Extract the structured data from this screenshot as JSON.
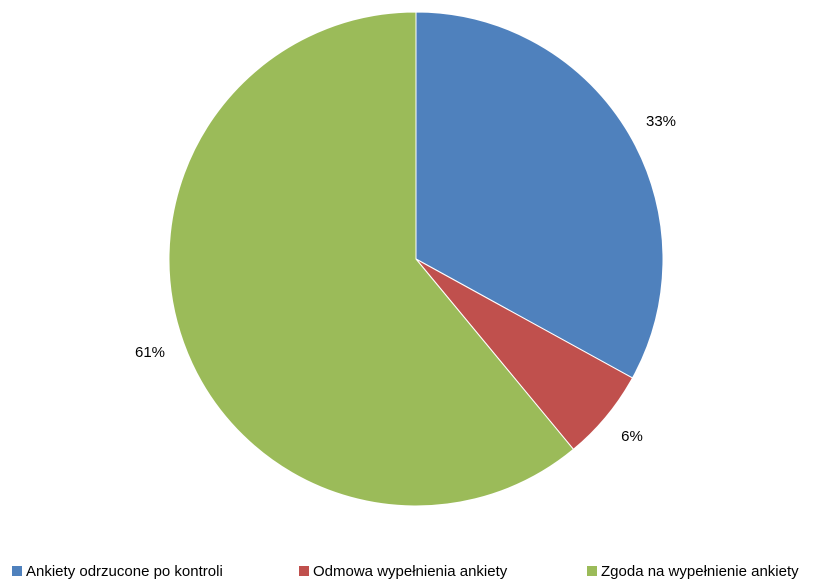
{
  "chart_data": {
    "type": "pie",
    "title": "",
    "categories": [
      "Ankiety odrzucone po kontroli",
      "Odmowa wypełnienia ankiety",
      "Zgoda na wypełnienie ankiety"
    ],
    "values": [
      33,
      6,
      61
    ],
    "data_labels": [
      "33%",
      "6%",
      "61%"
    ],
    "colors": [
      "#4f81bd",
      "#c0504d",
      "#9bbb59"
    ],
    "start_angle_deg": 0,
    "direction": "clockwise",
    "legend_position": "bottom"
  }
}
